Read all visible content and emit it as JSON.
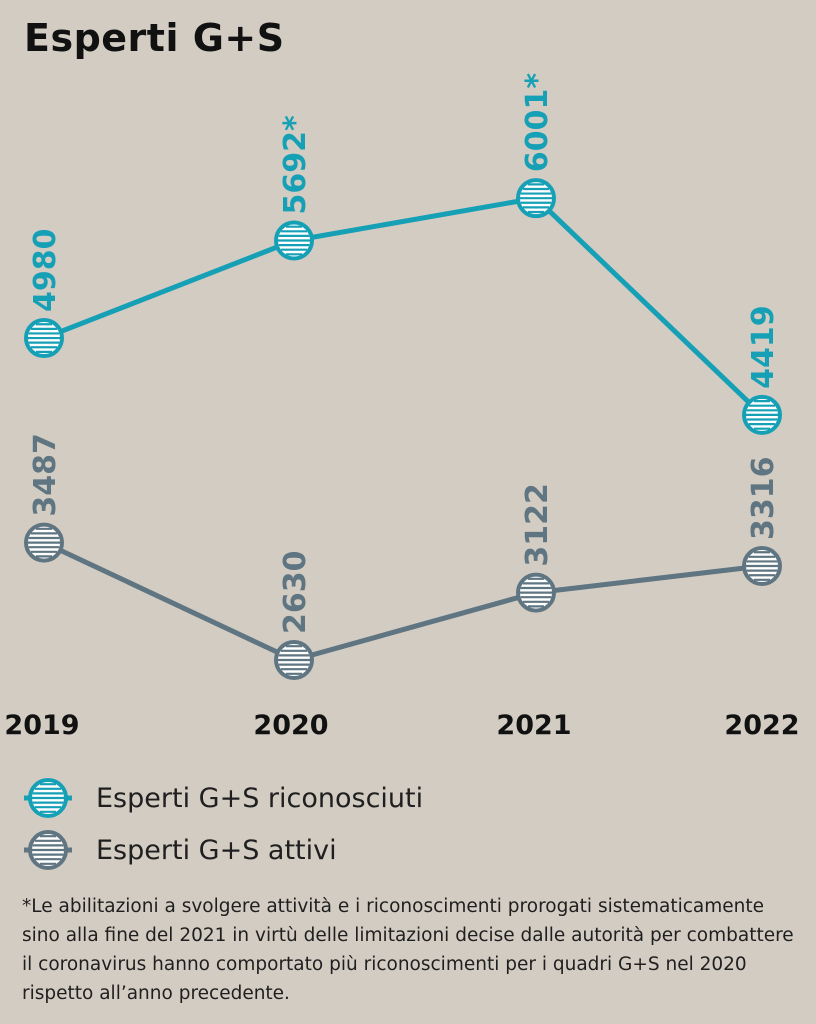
{
  "title": "Esperti G+S",
  "chart_data": {
    "type": "line",
    "categories": [
      "2019",
      "2020",
      "2021",
      "2022"
    ],
    "series": [
      {
        "name": "Esperti G+S riconosciuti",
        "values": [
          4980,
          5692,
          6001,
          4419
        ],
        "labels": [
          "4980",
          "5692*",
          "6001*",
          "4419"
        ],
        "color": "#16a0b6"
      },
      {
        "name": "Esperti G+S attivi",
        "values": [
          3487,
          2630,
          3122,
          3316
        ],
        "labels": [
          "3487",
          "2630",
          "3122",
          "3316"
        ],
        "color": "#5f7581"
      }
    ]
  },
  "legend": [
    {
      "label": "Esperti G+S riconosciuti",
      "color": "#16a0b6"
    },
    {
      "label": "Esperti G+S attivi",
      "color": "#5f7581"
    }
  ],
  "footnote": "*Le abilitazioni a svolgere attività e i riconoscimenti prorogati sistematicamente sino alla fine del 2021 in virtù delle limitazioni decise dalle autorità per combattere il coronavirus hanno comportato più riconoscimenti per i quadri G+S nel 2020 rispetto all’anno precedente."
}
